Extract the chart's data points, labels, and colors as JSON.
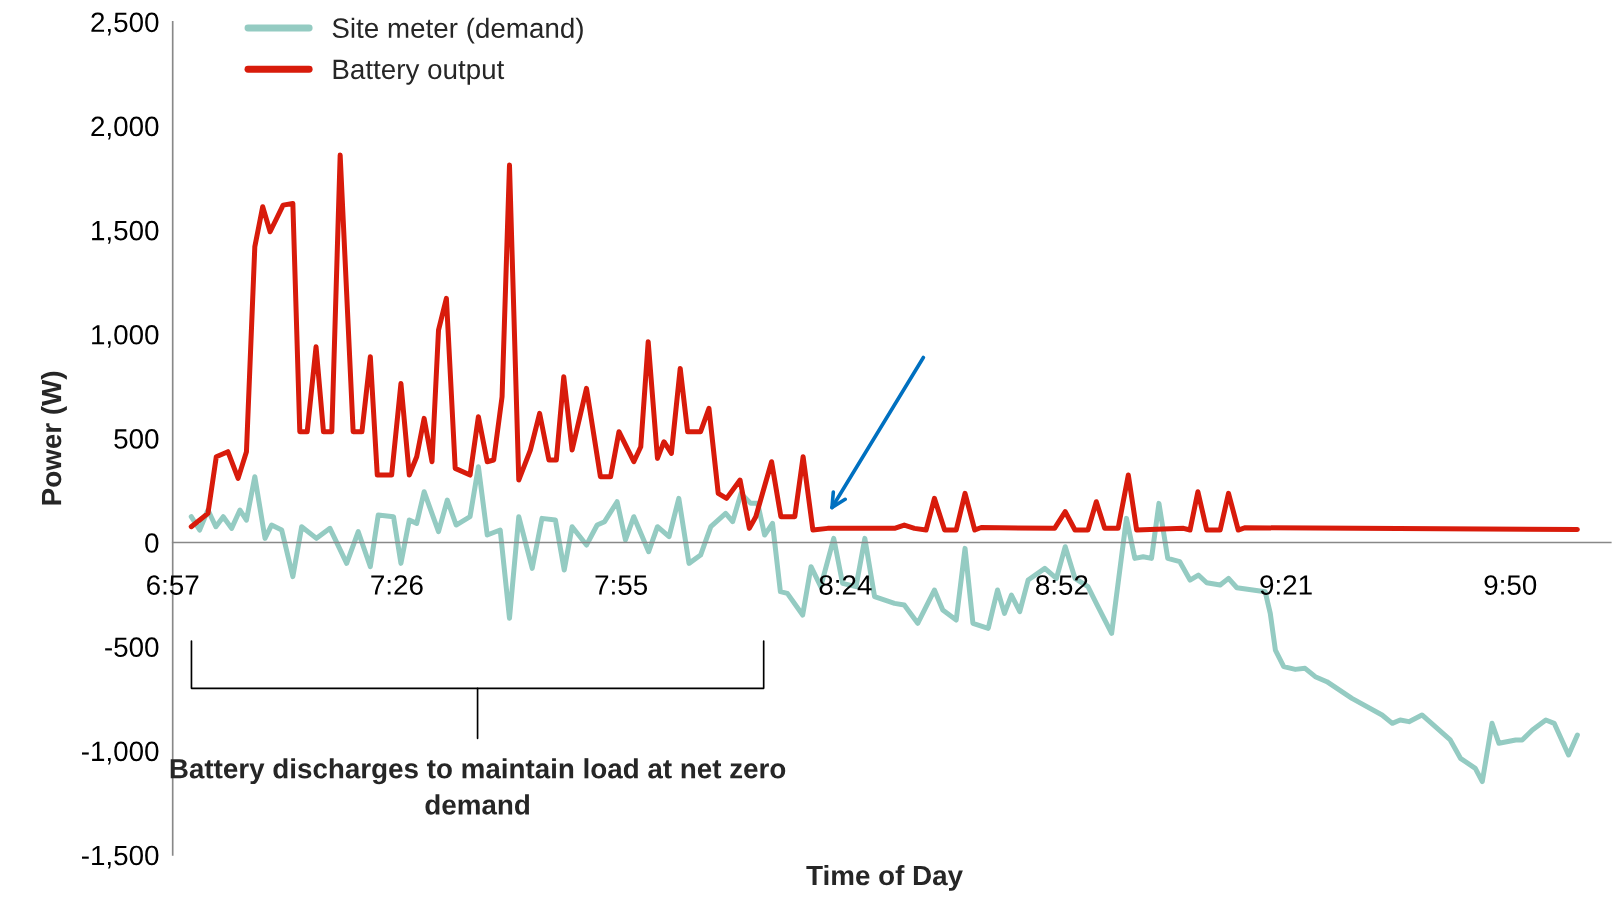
{
  "chart_data": {
    "type": "line",
    "xlabel": "Time of Day",
    "ylabel": "Power (W)",
    "xlim": [
      6.95,
      10.05
    ],
    "ylim": [
      -1500,
      2500
    ],
    "xticks": [
      {
        "value": 6.95,
        "label": "6:57"
      },
      {
        "value": 7.4333,
        "label": "7:26"
      },
      {
        "value": 7.9167,
        "label": "7:55"
      },
      {
        "value": 8.4,
        "label": "8:24"
      },
      {
        "value": 8.8667,
        "label": "8:52"
      },
      {
        "value": 9.35,
        "label": "9:21"
      },
      {
        "value": 9.8333,
        "label": "9:50"
      }
    ],
    "yticks": [
      {
        "value": -1500,
        "label": "-1,500"
      },
      {
        "value": -1000,
        "label": "-1,000"
      },
      -500,
      0,
      500,
      {
        "value": 1000,
        "label": "1,000"
      },
      {
        "value": 1500,
        "label": "1,500"
      },
      {
        "value": 2000,
        "label": "2,000"
      },
      {
        "value": 2500,
        "label": "2,500"
      }
    ],
    "grid": false,
    "legend": "top left",
    "marker": "none",
    "line_style": "solid",
    "annotations": [
      "Battery discharges to maintain load at net zero demand"
    ],
    "series": [
      {
        "name": "Site meter (demand)",
        "color": "#94cbc2",
        "x": [
          6.99,
          7.008,
          7.026,
          7.043,
          7.059,
          7.077,
          7.095,
          7.109,
          7.127,
          7.149,
          7.163,
          7.185,
          7.209,
          7.228,
          7.26,
          7.289,
          7.325,
          7.35,
          7.376,
          7.393,
          7.426,
          7.442,
          7.46,
          7.476,
          7.492,
          7.523,
          7.542,
          7.561,
          7.591,
          7.609,
          7.628,
          7.656,
          7.676,
          7.696,
          7.725,
          7.746,
          7.775,
          7.794,
          7.811,
          7.842,
          7.865,
          7.881,
          7.908,
          7.926,
          7.944,
          7.976,
          7.995,
          8.02,
          8.041,
          8.063,
          8.088,
          8.11,
          8.142,
          8.157,
          8.175,
          8.196,
          8.211,
          8.226,
          8.243,
          8.26,
          8.275,
          8.308,
          8.326,
          8.347,
          8.375,
          8.394,
          8.423,
          8.442,
          8.463,
          8.506,
          8.527,
          8.556,
          8.592,
          8.61,
          8.639,
          8.658,
          8.675,
          8.708,
          8.728,
          8.743,
          8.758,
          8.776,
          8.794,
          8.83,
          8.855,
          8.874,
          8.895,
          8.923,
          8.941,
          8.974,
          9.006,
          9.024,
          9.042,
          9.06,
          9.076,
          9.095,
          9.121,
          9.143,
          9.161,
          9.179,
          9.208,
          9.226,
          9.244,
          9.305,
          9.316,
          9.327,
          9.345,
          9.37,
          9.391,
          9.413,
          9.438,
          9.492,
          9.557,
          9.579,
          9.596,
          9.615,
          9.643,
          9.704,
          9.726,
          9.758,
          9.773,
          9.794,
          9.809,
          9.845,
          9.859,
          9.881,
          9.91,
          9.928,
          9.959,
          9.978
        ],
        "values": [
          124,
          60,
          156,
          76,
          124,
          68,
          156,
          108,
          316,
          20,
          84,
          60,
          -164,
          76,
          20,
          68,
          -100,
          52,
          -116,
          132,
          124,
          -100,
          108,
          92,
          244,
          52,
          204,
          84,
          124,
          364,
          36,
          60,
          -364,
          124,
          -124,
          116,
          108,
          -132,
          76,
          -12,
          84,
          100,
          196,
          12,
          124,
          -44,
          76,
          28,
          212,
          -100,
          -60,
          76,
          140,
          100,
          236,
          188,
          188,
          36,
          92,
          -236,
          -244,
          -348,
          -116,
          -212,
          20,
          -196,
          -212,
          20,
          -260,
          -292,
          -300,
          -388,
          -228,
          -324,
          -372,
          -28,
          -388,
          -412,
          -228,
          -340,
          -252,
          -332,
          -180,
          -124,
          -172,
          -20,
          -172,
          -212,
          -292,
          -436,
          116,
          -76,
          -68,
          -76,
          188,
          -76,
          -92,
          -180,
          -156,
          -193,
          -204,
          -172,
          -217,
          -236,
          -340,
          -516,
          -596,
          -609,
          -604,
          -644,
          -668,
          -748,
          -828,
          -868,
          -852,
          -860,
          -828,
          -948,
          -1036,
          -1084,
          -1148,
          -868,
          -964,
          -948,
          -948,
          -900,
          -852,
          -868,
          -1020,
          -924
        ]
      },
      {
        "name": "Battery output",
        "color": "#d81b0b",
        "x": [
          6.99,
          7.026,
          7.044,
          7.069,
          7.091,
          7.109,
          7.127,
          7.144,
          7.16,
          7.188,
          7.209,
          7.224,
          7.24,
          7.259,
          7.275,
          7.293,
          7.311,
          7.339,
          7.358,
          7.376,
          7.391,
          7.422,
          7.442,
          7.46,
          7.476,
          7.492,
          7.509,
          7.523,
          7.54,
          7.559,
          7.591,
          7.609,
          7.628,
          7.642,
          7.66,
          7.676,
          7.696,
          7.721,
          7.741,
          7.761,
          7.777,
          7.793,
          7.811,
          7.842,
          7.872,
          7.894,
          7.912,
          7.944,
          7.959,
          7.975,
          7.995,
          8.009,
          8.025,
          8.044,
          8.06,
          8.088,
          8.106,
          8.126,
          8.144,
          8.173,
          8.193,
          8.207,
          8.241,
          8.261,
          8.291,
          8.309,
          8.33,
          8.362,
          8.506,
          8.527,
          8.549,
          8.574,
          8.592,
          8.614,
          8.639,
          8.658,
          8.679,
          8.693,
          8.851,
          8.874,
          8.895,
          8.923,
          8.941,
          8.959,
          8.988,
          9.01,
          9.028,
          9.129,
          9.143,
          9.16,
          9.179,
          9.208,
          9.226,
          9.247,
          9.262,
          9.978
        ],
        "values": [
          76,
          140,
          412,
          436,
          308,
          436,
          1420,
          1612,
          1492,
          1620,
          1628,
          532,
          532,
          940,
          532,
          532,
          1860,
          532,
          532,
          892,
          324,
          324,
          764,
          324,
          412,
          596,
          388,
          1020,
          1172,
          356,
          324,
          604,
          388,
          396,
          700,
          1812,
          300,
          444,
          620,
          396,
          396,
          796,
          444,
          740,
          316,
          316,
          532,
          388,
          460,
          964,
          404,
          484,
          428,
          836,
          532,
          532,
          644,
          236,
          212,
          300,
          68,
          124,
          388,
          124,
          124,
          412,
          60,
          68,
          68,
          84,
          68,
          60,
          212,
          60,
          60,
          236,
          60,
          72,
          68,
          148,
          60,
          60,
          196,
          68,
          68,
          324,
          60,
          68,
          60,
          244,
          60,
          60,
          236,
          60,
          71,
          63
        ]
      }
    ]
  }
}
